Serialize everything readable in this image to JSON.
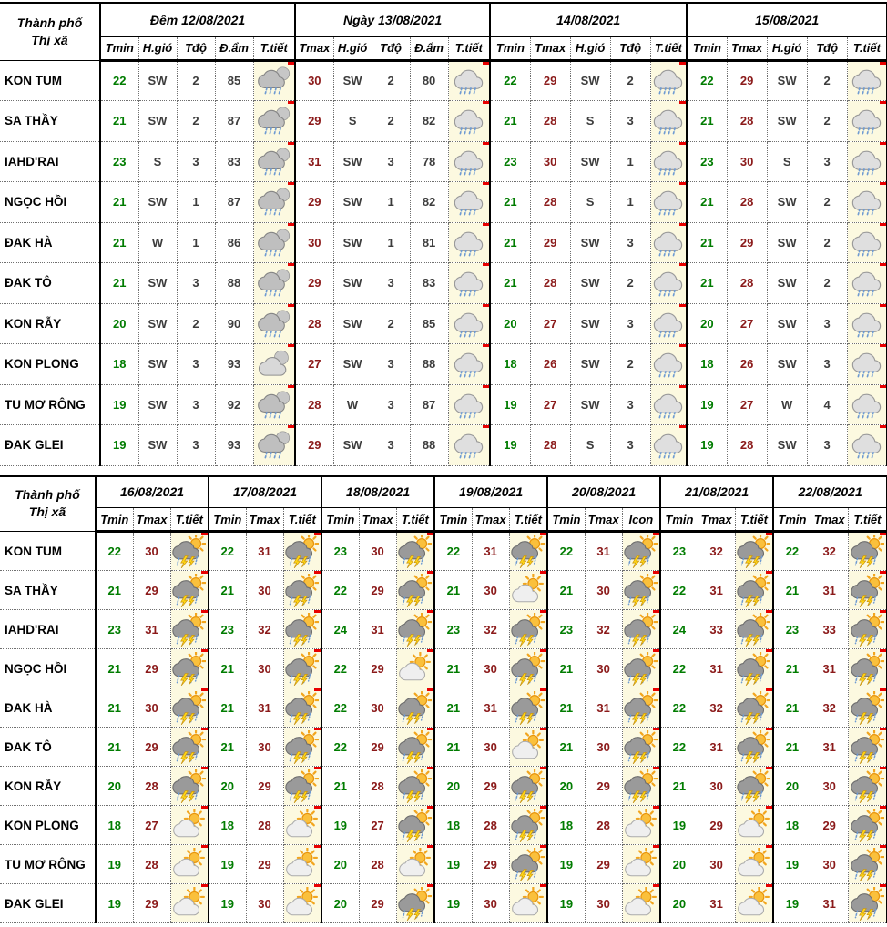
{
  "colors": {
    "tmin_text": "#007C00",
    "tmax_text": "#8B1A1A",
    "value_text": "#3C3C3C",
    "icon_cell_bg": "#FCF9E0",
    "comment_marker": "#E80000",
    "border": "#000000"
  },
  "icons": {
    "moon-rain": "night cloud with moon and rain",
    "moon-cloud": "night cloud with moon",
    "rain": "cloud with rain",
    "storm": "sun behind dark cloud with lightning and rain",
    "sun-cloud": "sun behind cloud"
  },
  "table1": {
    "corner_label_line1": "Thành phố",
    "corner_label_line2": "Thị xã",
    "groups": [
      {
        "label": "Đêm 12/08/2021",
        "columns": [
          "Tmin",
          "H.gió",
          "Tđộ",
          "Đ.ẩm",
          "T.tiết"
        ],
        "types": [
          "tmin",
          "wind",
          "level",
          "humid",
          "icon"
        ]
      },
      {
        "label": "Ngày 13/08/2021",
        "columns": [
          "Tmax",
          "H.gió",
          "Tđộ",
          "Đ.ẩm",
          "T.tiết"
        ],
        "types": [
          "tmax",
          "wind",
          "level",
          "humid",
          "icon"
        ]
      },
      {
        "label": "14/08/2021",
        "columns": [
          "Tmin",
          "Tmax",
          "H.gió",
          "Tđộ",
          "T.tiết"
        ],
        "types": [
          "tmin",
          "tmax",
          "wind",
          "level",
          "icon"
        ]
      },
      {
        "label": "15/08/2021",
        "columns": [
          "Tmin",
          "Tmax",
          "H.gió",
          "Tđộ",
          "T.tiết"
        ],
        "types": [
          "tmin",
          "tmax",
          "wind",
          "level",
          "icon"
        ]
      }
    ],
    "rows": [
      {
        "name": "KON TUM",
        "cells": [
          [
            "22",
            "SW",
            "2",
            "85",
            "moon-rain"
          ],
          [
            "30",
            "SW",
            "2",
            "80",
            "rain"
          ],
          [
            "22",
            "29",
            "SW",
            "2",
            "rain"
          ],
          [
            "22",
            "29",
            "SW",
            "2",
            "rain"
          ]
        ]
      },
      {
        "name": "SA THẦY",
        "cells": [
          [
            "21",
            "SW",
            "2",
            "87",
            "moon-rain"
          ],
          [
            "29",
            "S",
            "2",
            "82",
            "rain"
          ],
          [
            "21",
            "28",
            "S",
            "3",
            "rain"
          ],
          [
            "21",
            "28",
            "SW",
            "2",
            "rain"
          ]
        ]
      },
      {
        "name": "IAHD'RAI",
        "cells": [
          [
            "23",
            "S",
            "3",
            "83",
            "moon-rain"
          ],
          [
            "31",
            "SW",
            "3",
            "78",
            "rain"
          ],
          [
            "23",
            "30",
            "SW",
            "1",
            "rain"
          ],
          [
            "23",
            "30",
            "S",
            "3",
            "rain"
          ]
        ]
      },
      {
        "name": "NGỌC HỒI",
        "cells": [
          [
            "21",
            "SW",
            "1",
            "87",
            "moon-rain"
          ],
          [
            "29",
            "SW",
            "1",
            "82",
            "rain"
          ],
          [
            "21",
            "28",
            "S",
            "1",
            "rain"
          ],
          [
            "21",
            "28",
            "SW",
            "2",
            "rain"
          ]
        ]
      },
      {
        "name": "ĐAK HÀ",
        "cells": [
          [
            "21",
            "W",
            "1",
            "86",
            "moon-rain"
          ],
          [
            "30",
            "SW",
            "1",
            "81",
            "rain"
          ],
          [
            "21",
            "29",
            "SW",
            "3",
            "rain"
          ],
          [
            "21",
            "29",
            "SW",
            "2",
            "rain"
          ]
        ]
      },
      {
        "name": "ĐAK TÔ",
        "cells": [
          [
            "21",
            "SW",
            "3",
            "88",
            "moon-rain"
          ],
          [
            "29",
            "SW",
            "3",
            "83",
            "rain"
          ],
          [
            "21",
            "28",
            "SW",
            "2",
            "rain"
          ],
          [
            "21",
            "28",
            "SW",
            "2",
            "rain"
          ]
        ]
      },
      {
        "name": "KON RẪY",
        "cells": [
          [
            "20",
            "SW",
            "2",
            "90",
            "moon-rain"
          ],
          [
            "28",
            "SW",
            "2",
            "85",
            "rain"
          ],
          [
            "20",
            "27",
            "SW",
            "3",
            "rain"
          ],
          [
            "20",
            "27",
            "SW",
            "3",
            "rain"
          ]
        ]
      },
      {
        "name": "KON PLONG",
        "cells": [
          [
            "18",
            "SW",
            "3",
            "93",
            "moon-cloud"
          ],
          [
            "27",
            "SW",
            "3",
            "88",
            "rain"
          ],
          [
            "18",
            "26",
            "SW",
            "2",
            "rain"
          ],
          [
            "18",
            "26",
            "SW",
            "3",
            "rain"
          ]
        ]
      },
      {
        "name": "TU MƠ RÔNG",
        "cells": [
          [
            "19",
            "SW",
            "3",
            "92",
            "moon-rain"
          ],
          [
            "28",
            "W",
            "3",
            "87",
            "rain"
          ],
          [
            "19",
            "27",
            "SW",
            "3",
            "rain"
          ],
          [
            "19",
            "27",
            "W",
            "4",
            "rain"
          ]
        ]
      },
      {
        "name": "ĐAK GLEI",
        "cells": [
          [
            "19",
            "SW",
            "3",
            "93",
            "moon-rain"
          ],
          [
            "29",
            "SW",
            "3",
            "88",
            "rain"
          ],
          [
            "19",
            "28",
            "S",
            "3",
            "rain"
          ],
          [
            "19",
            "28",
            "SW",
            "3",
            "rain"
          ]
        ]
      }
    ]
  },
  "table2": {
    "corner_label_line1": "Thành phố",
    "corner_label_line2": "Thị xã",
    "groups": [
      {
        "label": "16/08/2021",
        "columns": [
          "Tmin",
          "Tmax",
          "T.tiết"
        ],
        "types": [
          "tmin",
          "tmax",
          "icon"
        ]
      },
      {
        "label": "17/08/2021",
        "columns": [
          "Tmin",
          "Tmax",
          "T.tiết"
        ],
        "types": [
          "tmin",
          "tmax",
          "icon"
        ]
      },
      {
        "label": "18/08/2021",
        "columns": [
          "Tmin",
          "Tmax",
          "T.tiết"
        ],
        "types": [
          "tmin",
          "tmax",
          "icon"
        ]
      },
      {
        "label": "19/08/2021",
        "columns": [
          "Tmin",
          "Tmax",
          "T.tiết"
        ],
        "types": [
          "tmin",
          "tmax",
          "icon"
        ]
      },
      {
        "label": "20/08/2021",
        "columns": [
          "Tmin",
          "Tmax",
          "Icon"
        ],
        "types": [
          "tmin",
          "tmax",
          "icon"
        ]
      },
      {
        "label": "21/08/2021",
        "columns": [
          "Tmin",
          "Tmax",
          "T.tiết"
        ],
        "types": [
          "tmin",
          "tmax",
          "icon"
        ]
      },
      {
        "label": "22/08/2021",
        "columns": [
          "Tmin",
          "Tmax",
          "T.tiết"
        ],
        "types": [
          "tmin",
          "tmax",
          "icon"
        ]
      }
    ],
    "rows": [
      {
        "name": "KON TUM",
        "cells": [
          [
            "22",
            "30",
            "storm"
          ],
          [
            "22",
            "31",
            "storm"
          ],
          [
            "23",
            "30",
            "storm"
          ],
          [
            "22",
            "31",
            "storm"
          ],
          [
            "22",
            "31",
            "storm"
          ],
          [
            "23",
            "32",
            "storm"
          ],
          [
            "22",
            "32",
            "storm"
          ]
        ]
      },
      {
        "name": "SA THẦY",
        "cells": [
          [
            "21",
            "29",
            "storm"
          ],
          [
            "21",
            "30",
            "storm"
          ],
          [
            "22",
            "29",
            "storm"
          ],
          [
            "21",
            "30",
            "sun-cloud"
          ],
          [
            "21",
            "30",
            "storm"
          ],
          [
            "22",
            "31",
            "storm"
          ],
          [
            "21",
            "31",
            "storm"
          ]
        ]
      },
      {
        "name": "IAHD'RAI",
        "cells": [
          [
            "23",
            "31",
            "storm"
          ],
          [
            "23",
            "32",
            "storm"
          ],
          [
            "24",
            "31",
            "storm"
          ],
          [
            "23",
            "32",
            "storm"
          ],
          [
            "23",
            "32",
            "storm"
          ],
          [
            "24",
            "33",
            "storm"
          ],
          [
            "23",
            "33",
            "storm"
          ]
        ]
      },
      {
        "name": "NGỌC HỒI",
        "cells": [
          [
            "21",
            "29",
            "storm"
          ],
          [
            "21",
            "30",
            "storm"
          ],
          [
            "22",
            "29",
            "sun-cloud"
          ],
          [
            "21",
            "30",
            "storm"
          ],
          [
            "21",
            "30",
            "storm"
          ],
          [
            "22",
            "31",
            "storm"
          ],
          [
            "21",
            "31",
            "storm"
          ]
        ]
      },
      {
        "name": "ĐAK HÀ",
        "cells": [
          [
            "21",
            "30",
            "storm"
          ],
          [
            "21",
            "31",
            "storm"
          ],
          [
            "22",
            "30",
            "storm"
          ],
          [
            "21",
            "31",
            "storm"
          ],
          [
            "21",
            "31",
            "storm"
          ],
          [
            "22",
            "32",
            "storm"
          ],
          [
            "21",
            "32",
            "storm"
          ]
        ]
      },
      {
        "name": "ĐAK TÔ",
        "cells": [
          [
            "21",
            "29",
            "storm"
          ],
          [
            "21",
            "30",
            "storm"
          ],
          [
            "22",
            "29",
            "storm"
          ],
          [
            "21",
            "30",
            "sun-cloud"
          ],
          [
            "21",
            "30",
            "storm"
          ],
          [
            "22",
            "31",
            "storm"
          ],
          [
            "21",
            "31",
            "storm"
          ]
        ]
      },
      {
        "name": "KON RẪY",
        "cells": [
          [
            "20",
            "28",
            "storm"
          ],
          [
            "20",
            "29",
            "storm"
          ],
          [
            "21",
            "28",
            "storm"
          ],
          [
            "20",
            "29",
            "storm"
          ],
          [
            "20",
            "29",
            "storm"
          ],
          [
            "21",
            "30",
            "storm"
          ],
          [
            "20",
            "30",
            "storm"
          ]
        ]
      },
      {
        "name": "KON PLONG",
        "cells": [
          [
            "18",
            "27",
            "sun-cloud"
          ],
          [
            "18",
            "28",
            "sun-cloud"
          ],
          [
            "19",
            "27",
            "storm"
          ],
          [
            "18",
            "28",
            "storm"
          ],
          [
            "18",
            "28",
            "sun-cloud"
          ],
          [
            "19",
            "29",
            "sun-cloud"
          ],
          [
            "18",
            "29",
            "storm"
          ]
        ]
      },
      {
        "name": "TU MƠ RÔNG",
        "cells": [
          [
            "19",
            "28",
            "sun-cloud"
          ],
          [
            "19",
            "29",
            "sun-cloud"
          ],
          [
            "20",
            "28",
            "sun-cloud"
          ],
          [
            "19",
            "29",
            "storm"
          ],
          [
            "19",
            "29",
            "sun-cloud"
          ],
          [
            "20",
            "30",
            "sun-cloud"
          ],
          [
            "19",
            "30",
            "storm"
          ]
        ]
      },
      {
        "name": "ĐAK GLEI",
        "cells": [
          [
            "19",
            "29",
            "sun-cloud"
          ],
          [
            "19",
            "30",
            "sun-cloud"
          ],
          [
            "20",
            "29",
            "storm"
          ],
          [
            "19",
            "30",
            "sun-cloud"
          ],
          [
            "19",
            "30",
            "sun-cloud"
          ],
          [
            "20",
            "31",
            "sun-cloud"
          ],
          [
            "19",
            "31",
            "storm"
          ]
        ]
      }
    ]
  }
}
